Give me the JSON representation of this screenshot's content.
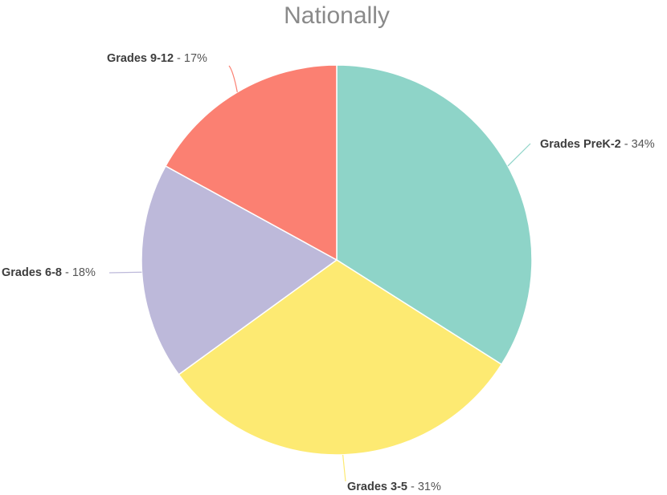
{
  "chart_data": {
    "type": "pie",
    "title": "Nationally",
    "slices": [
      {
        "label": "Grades PreK-2",
        "value": 34,
        "value_text": "34%",
        "color": "#8ed4c8"
      },
      {
        "label": "Grades 3-5",
        "value": 31,
        "value_text": "31%",
        "color": "#fdea72"
      },
      {
        "label": "Grades 6-8",
        "value": 18,
        "value_text": "18%",
        "color": "#bdb9da"
      },
      {
        "label": "Grades 9-12",
        "value": 17,
        "value_text": "17%",
        "color": "#fb8072"
      }
    ],
    "start_angle": "12 o'clock",
    "direction": "clockwise",
    "legend": "none",
    "data_labels": "outside with leader lines",
    "separator": " - "
  }
}
